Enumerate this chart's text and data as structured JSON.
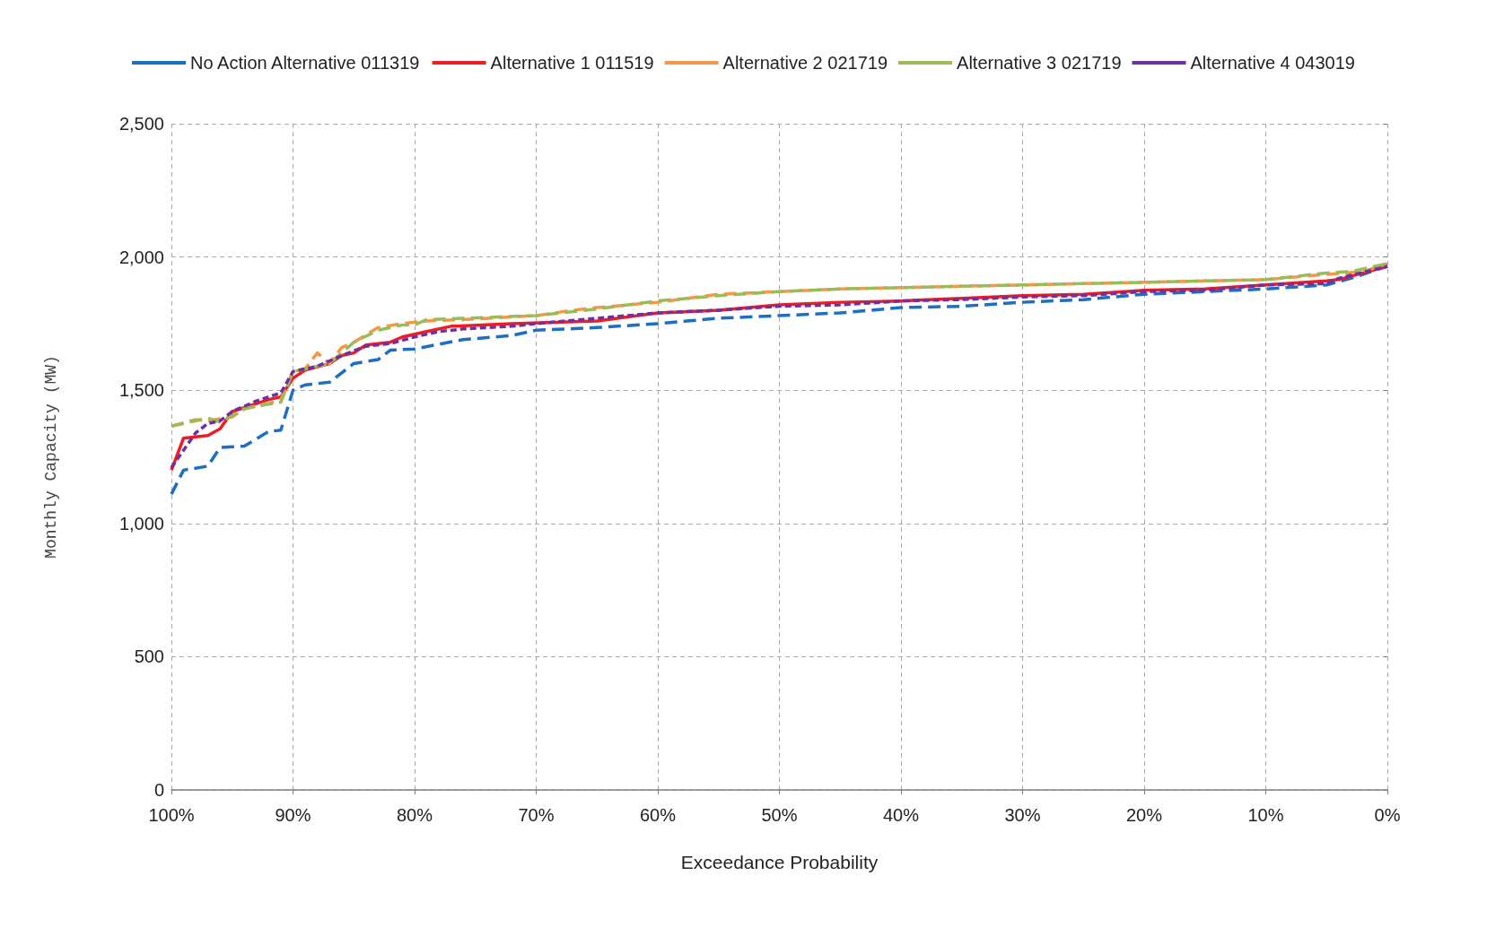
{
  "chart_data": {
    "type": "line",
    "xlabel": "Exceedance Probability",
    "ylabel": "Monthly Capacity (MW)",
    "legend": "top",
    "grid": true,
    "marker": "none",
    "xlim": [
      100,
      0
    ],
    "xticks": [
      {
        "value": 100,
        "label": "100%"
      },
      {
        "value": 90,
        "label": "90%"
      },
      {
        "value": 80,
        "label": "80%"
      },
      {
        "value": 70,
        "label": "70%"
      },
      {
        "value": 60,
        "label": "60%"
      },
      {
        "value": 50,
        "label": "50%"
      },
      {
        "value": 40,
        "label": "40%"
      },
      {
        "value": 30,
        "label": "30%"
      },
      {
        "value": 20,
        "label": "20%"
      },
      {
        "value": 10,
        "label": "10%"
      },
      {
        "value": 0,
        "label": "0%"
      }
    ],
    "ylim": [
      0,
      2500
    ],
    "yticks": [
      0,
      500,
      {
        "value": 1000,
        "label": "1,000"
      },
      {
        "value": 1500,
        "label": "1,500"
      },
      {
        "value": 2000,
        "label": "2,000"
      },
      {
        "value": 2500,
        "label": "2,500"
      }
    ],
    "series": [
      {
        "name": "No Action Alternative 011319",
        "color": "#1f6fc0",
        "line_style": "dashed",
        "x": [
          100,
          99,
          97,
          96,
          94,
          92,
          91,
          90,
          89,
          87,
          85,
          83,
          82,
          80,
          76,
          72,
          70,
          65,
          60,
          55,
          50,
          45,
          40,
          35,
          30,
          25,
          20,
          15,
          10,
          5,
          3,
          0
        ],
        "values": [
          1110,
          1200,
          1215,
          1285,
          1290,
          1345,
          1350,
          1500,
          1520,
          1530,
          1600,
          1615,
          1650,
          1655,
          1690,
          1705,
          1725,
          1735,
          1750,
          1770,
          1780,
          1790,
          1810,
          1815,
          1830,
          1840,
          1860,
          1870,
          1880,
          1895,
          1920,
          1965
        ]
      },
      {
        "name": "Alternative 1 011519",
        "color": "#ee1c25",
        "line_style": "solid",
        "x": [
          100,
          99,
          97,
          96,
          95,
          93,
          92,
          91,
          90,
          89,
          87,
          86,
          85,
          84,
          82,
          81,
          79,
          77,
          72,
          65,
          60,
          55,
          50,
          45,
          40,
          35,
          30,
          25,
          20,
          15,
          10,
          5,
          4,
          2,
          0
        ],
        "values": [
          1200,
          1320,
          1330,
          1355,
          1420,
          1450,
          1465,
          1475,
          1545,
          1575,
          1600,
          1630,
          1640,
          1670,
          1680,
          1700,
          1720,
          1740,
          1750,
          1760,
          1790,
          1800,
          1820,
          1830,
          1835,
          1845,
          1855,
          1860,
          1875,
          1880,
          1895,
          1910,
          1915,
          1940,
          1965
        ]
      },
      {
        "name": "Alternative 2 021719",
        "color": "#f79646",
        "line_style": "dashed",
        "x": [
          100,
          98,
          97,
          95,
          94,
          92,
          91,
          90,
          89,
          88,
          87,
          86,
          85,
          83,
          81,
          79,
          76,
          70,
          67,
          65,
          60,
          55,
          50,
          45,
          40,
          30,
          20,
          10,
          5,
          2,
          0
        ],
        "values": [
          1365,
          1390,
          1385,
          1400,
          1430,
          1450,
          1465,
          1570,
          1580,
          1640,
          1600,
          1660,
          1680,
          1735,
          1750,
          1760,
          1765,
          1780,
          1800,
          1810,
          1830,
          1860,
          1870,
          1880,
          1885,
          1895,
          1905,
          1915,
          1935,
          1945,
          1975
        ]
      },
      {
        "name": "Alternative 3 021719",
        "color": "#9bbb59",
        "line_style": "dashed",
        "x": [
          100,
          97,
          96,
          94,
          93,
          91,
          90,
          89,
          87,
          85,
          83,
          81,
          80,
          79,
          76,
          70,
          68,
          65,
          60,
          55,
          50,
          45,
          40,
          30,
          20,
          10,
          5,
          3,
          1,
          0
        ],
        "values": [
          1365,
          1395,
          1380,
          1430,
          1440,
          1455,
          1570,
          1580,
          1600,
          1680,
          1725,
          1745,
          1745,
          1765,
          1770,
          1780,
          1790,
          1805,
          1835,
          1855,
          1870,
          1880,
          1885,
          1895,
          1905,
          1915,
          1940,
          1945,
          1965,
          1975
        ]
      },
      {
        "name": "Alternative 4 043019",
        "color": "#7030a0",
        "line_style": "dotted",
        "x": [
          100,
          98,
          97,
          96,
          95,
          93,
          91,
          90,
          88,
          86,
          84,
          82,
          80,
          78,
          76,
          72,
          70,
          65,
          60,
          55,
          50,
          45,
          40,
          35,
          30,
          25,
          20,
          15,
          10,
          5,
          4,
          0
        ],
        "values": [
          1210,
          1340,
          1375,
          1385,
          1420,
          1460,
          1490,
          1570,
          1590,
          1630,
          1665,
          1675,
          1700,
          1720,
          1730,
          1740,
          1750,
          1770,
          1790,
          1800,
          1815,
          1820,
          1835,
          1840,
          1850,
          1855,
          1870,
          1875,
          1895,
          1900,
          1920,
          1965
        ]
      }
    ]
  }
}
